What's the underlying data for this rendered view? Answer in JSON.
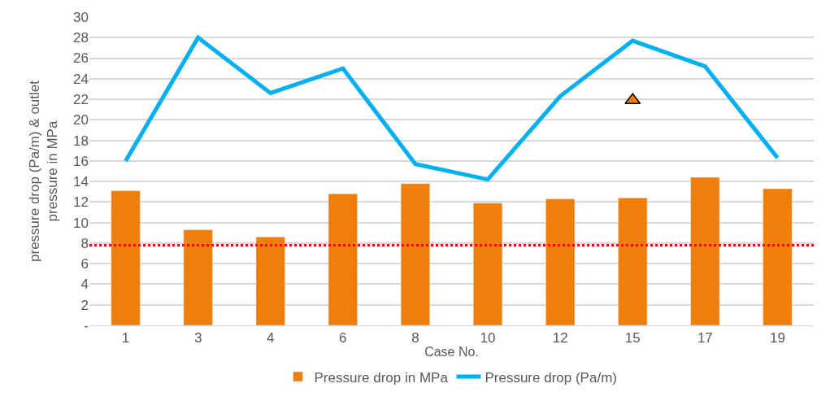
{
  "chart_data": {
    "type": "bar",
    "xlabel": "Case No.",
    "ylabel": "pressure drop (Pa/m) & outlet\npressure in MPa",
    "categories": [
      "1",
      "3",
      "4",
      "6",
      "8",
      "10",
      "12",
      "15",
      "17",
      "19"
    ],
    "series": [
      {
        "name": "Pressure drop in MPa",
        "color": "#ee7f0c",
        "values": [
          13.1,
          9.3,
          8.6,
          12.8,
          13.8,
          11.9,
          12.3,
          12.4,
          14.4,
          13.3
        ]
      },
      {
        "name": "Pressure drop (Pa/m)",
        "type": "line",
        "color": "#00b0f0",
        "values": [
          16.0,
          28.0,
          22.6,
          25.0,
          15.7,
          14.2,
          22.3,
          27.7,
          25.2,
          16.3
        ]
      },
      {
        "type": "scatter",
        "color": "#ee7f0c",
        "marker": "triangle",
        "x": [
          "15"
        ],
        "values": [
          21.9
        ]
      }
    ],
    "ylim": [
      0,
      30
    ],
    "yticks": [
      {
        "value": 0,
        "label": "-"
      },
      2,
      4,
      6,
      8,
      10,
      12,
      14,
      16,
      18,
      20,
      22,
      24,
      26,
      28,
      30
    ],
    "ref_lines": [
      {
        "axis": "y",
        "value": 7.8,
        "color": "#ff0000",
        "line_style": "dotted"
      }
    ],
    "grid": "y",
    "legend": "bottom"
  }
}
